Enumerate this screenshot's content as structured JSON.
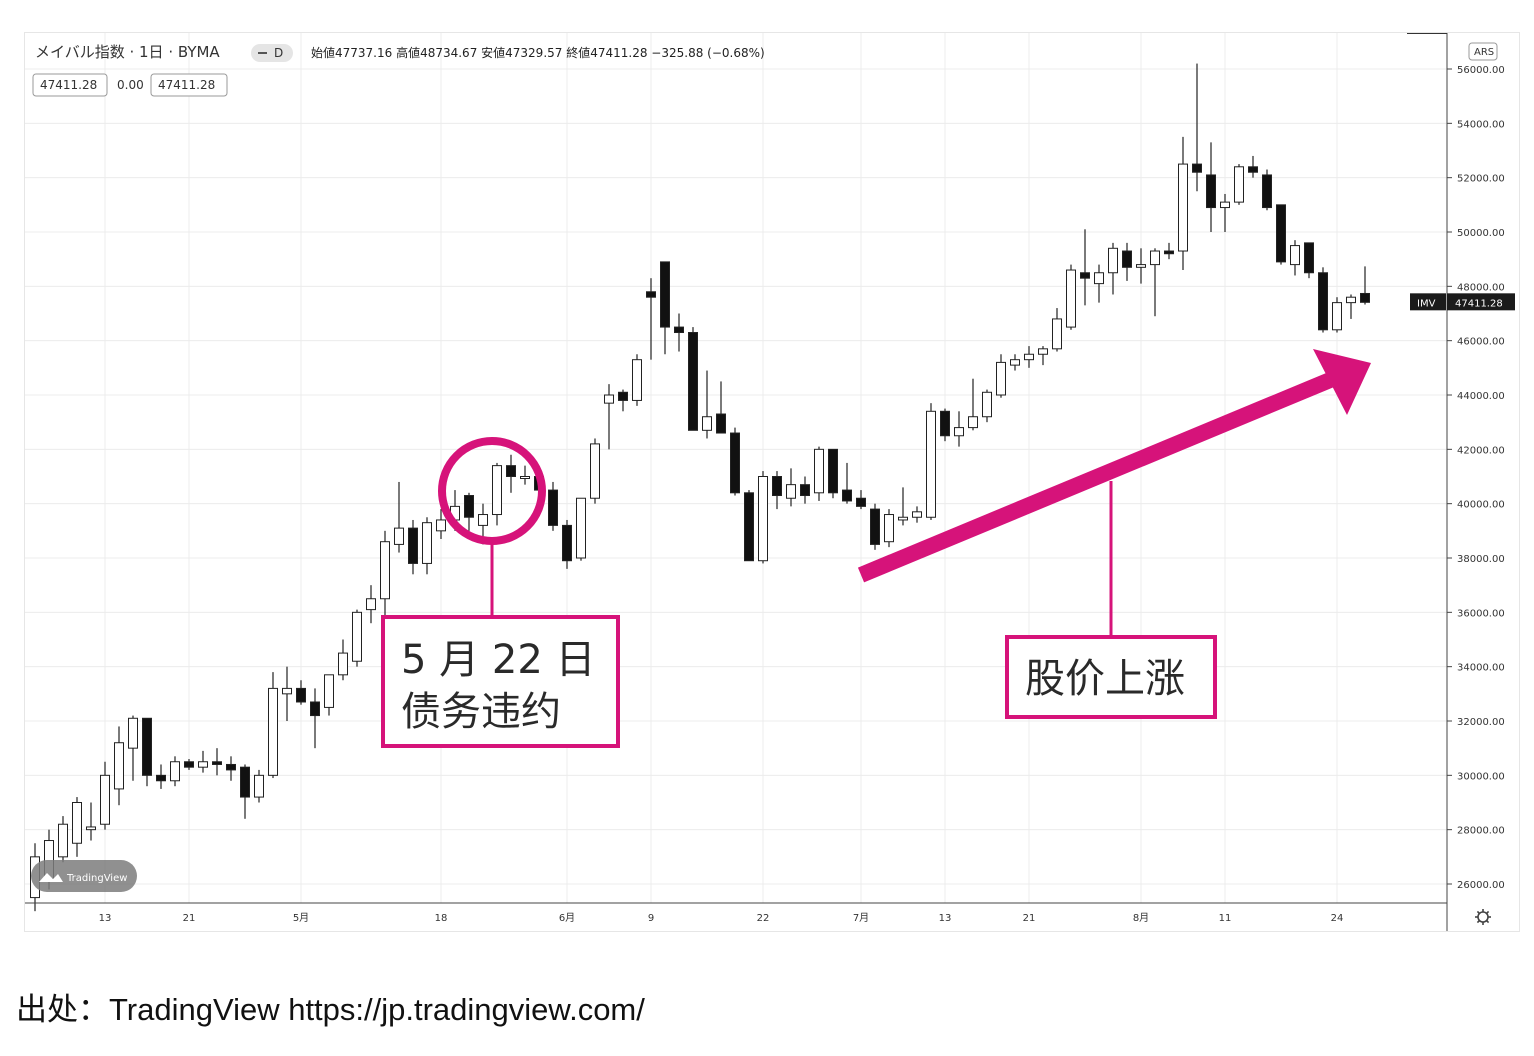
{
  "header": {
    "title": "メイバル指数 · 1日 · BYMA",
    "interval_badge": "D",
    "ohlc": "始値47737.16 高値48734.67 安値47329.57 終値47411.28 −325.88 (−0.68%)",
    "box_left": "47411.28",
    "box_mid": "0.00",
    "box_right": "47411.28"
  },
  "currency_badge": "ARS",
  "price_tag": {
    "symbol": "IMV",
    "value": "47411.28"
  },
  "watermark": "TradingView",
  "annotations": {
    "default_label_line1": "5 月 22 日",
    "default_label_line2": "债务违约",
    "rise_label": "股价上涨"
  },
  "caption": "出处：TradingView https://jp.tradingview.com/",
  "colors": {
    "accent": "#d6137a",
    "up_candle": "#ffffff",
    "down_candle": "#111111",
    "grid": "#ececec"
  },
  "chart_data": {
    "type": "candlestick",
    "ylim": [
      25000,
      57000
    ],
    "y_ticks": [
      "56000.00",
      "54000.00",
      "52000.00",
      "50000.00",
      "48000.00",
      "46000.00",
      "44000.00",
      "42000.00",
      "40000.00",
      "38000.00",
      "36000.00",
      "34000.00",
      "32000.00",
      "30000.00",
      "28000.00",
      "26000.00"
    ],
    "x_ticks": [
      "13",
      "21",
      "5月",
      "18",
      "6月",
      "9",
      "22",
      "7月",
      "13",
      "21",
      "8月",
      "11",
      "24"
    ],
    "x_tick_index": [
      5,
      11,
      19,
      29,
      38,
      44,
      52,
      59,
      65,
      71,
      79,
      85,
      93
    ],
    "last_price": 47411.28,
    "candles": [
      {
        "i": 0,
        "o": 25500,
        "h": 27500,
        "l": 25000,
        "c": 27000
      },
      {
        "i": 1,
        "o": 26200,
        "h": 28000,
        "l": 25800,
        "c": 27600
      },
      {
        "i": 2,
        "o": 27000,
        "h": 28500,
        "l": 26800,
        "c": 28200
      },
      {
        "i": 3,
        "o": 27500,
        "h": 29200,
        "l": 27000,
        "c": 29000
      },
      {
        "i": 4,
        "o": 28000,
        "h": 29000,
        "l": 27600,
        "c": 28100
      },
      {
        "i": 5,
        "o": 28200,
        "h": 30500,
        "l": 28000,
        "c": 30000
      },
      {
        "i": 6,
        "o": 29500,
        "h": 31800,
        "l": 28900,
        "c": 31200
      },
      {
        "i": 7,
        "o": 31000,
        "h": 32200,
        "l": 29800,
        "c": 32100
      },
      {
        "i": 8,
        "o": 32100,
        "h": 32100,
        "l": 29600,
        "c": 30000
      },
      {
        "i": 9,
        "o": 30000,
        "h": 30400,
        "l": 29500,
        "c": 29800
      },
      {
        "i": 10,
        "o": 29800,
        "h": 30700,
        "l": 29600,
        "c": 30500
      },
      {
        "i": 11,
        "o": 30500,
        "h": 30600,
        "l": 30200,
        "c": 30300
      },
      {
        "i": 12,
        "o": 30300,
        "h": 30900,
        "l": 30100,
        "c": 30500
      },
      {
        "i": 13,
        "o": 30500,
        "h": 31000,
        "l": 30000,
        "c": 30400
      },
      {
        "i": 14,
        "o": 30400,
        "h": 30700,
        "l": 29800,
        "c": 30200
      },
      {
        "i": 15,
        "o": 30300,
        "h": 30400,
        "l": 28400,
        "c": 29200
      },
      {
        "i": 16,
        "o": 29200,
        "h": 30200,
        "l": 29000,
        "c": 30000
      },
      {
        "i": 17,
        "o": 30000,
        "h": 33800,
        "l": 29900,
        "c": 33200
      },
      {
        "i": 18,
        "o": 33000,
        "h": 34000,
        "l": 32000,
        "c": 33200
      },
      {
        "i": 19,
        "o": 33200,
        "h": 33500,
        "l": 32600,
        "c": 32700
      },
      {
        "i": 20,
        "o": 32700,
        "h": 33200,
        "l": 31000,
        "c": 32200
      },
      {
        "i": 21,
        "o": 32500,
        "h": 33700,
        "l": 32200,
        "c": 33700
      },
      {
        "i": 22,
        "o": 33700,
        "h": 35000,
        "l": 33500,
        "c": 34500
      },
      {
        "i": 23,
        "o": 34200,
        "h": 36100,
        "l": 34000,
        "c": 36000
      },
      {
        "i": 24,
        "o": 36100,
        "h": 37000,
        "l": 35600,
        "c": 36500
      },
      {
        "i": 25,
        "o": 36500,
        "h": 39000,
        "l": 35900,
        "c": 38600
      },
      {
        "i": 26,
        "o": 38500,
        "h": 40800,
        "l": 38200,
        "c": 39100
      },
      {
        "i": 27,
        "o": 39100,
        "h": 39400,
        "l": 37400,
        "c": 37800
      },
      {
        "i": 28,
        "o": 37800,
        "h": 39500,
        "l": 37400,
        "c": 39300
      },
      {
        "i": 29,
        "o": 39000,
        "h": 39800,
        "l": 38700,
        "c": 39400
      },
      {
        "i": 30,
        "o": 39400,
        "h": 40500,
        "l": 39000,
        "c": 39900
      },
      {
        "i": 31,
        "o": 40300,
        "h": 40400,
        "l": 39000,
        "c": 39500
      },
      {
        "i": 32,
        "o": 39200,
        "h": 40000,
        "l": 38500,
        "c": 39600
      },
      {
        "i": 33,
        "o": 39600,
        "h": 41500,
        "l": 39200,
        "c": 41400
      },
      {
        "i": 34,
        "o": 41400,
        "h": 41800,
        "l": 40400,
        "c": 41000
      },
      {
        "i": 35,
        "o": 41000,
        "h": 41400,
        "l": 40700,
        "c": 41000
      },
      {
        "i": 36,
        "o": 41000,
        "h": 41300,
        "l": 39600,
        "c": 40500
      },
      {
        "i": 37,
        "o": 40500,
        "h": 40800,
        "l": 39000,
        "c": 39200
      },
      {
        "i": 38,
        "o": 39200,
        "h": 39400,
        "l": 37600,
        "c": 37900
      },
      {
        "i": 39,
        "o": 38000,
        "h": 40200,
        "l": 37900,
        "c": 40200
      },
      {
        "i": 40,
        "o": 40200,
        "h": 42400,
        "l": 40000,
        "c": 42200
      },
      {
        "i": 41,
        "o": 43700,
        "h": 44400,
        "l": 42000,
        "c": 44000
      },
      {
        "i": 42,
        "o": 44100,
        "h": 44200,
        "l": 43400,
        "c": 43800
      },
      {
        "i": 43,
        "o": 43800,
        "h": 45500,
        "l": 43600,
        "c": 45300
      },
      {
        "i": 44,
        "o": 47800,
        "h": 48300,
        "l": 45300,
        "c": 47600
      },
      {
        "i": 45,
        "o": 48900,
        "h": 48900,
        "l": 45500,
        "c": 46500
      },
      {
        "i": 46,
        "o": 46500,
        "h": 47000,
        "l": 45600,
        "c": 46300
      },
      {
        "i": 47,
        "o": 46300,
        "h": 46500,
        "l": 42800,
        "c": 42700
      },
      {
        "i": 48,
        "o": 42700,
        "h": 44900,
        "l": 42400,
        "c": 43200
      },
      {
        "i": 49,
        "o": 43300,
        "h": 44500,
        "l": 42600,
        "c": 42600
      },
      {
        "i": 50,
        "o": 42600,
        "h": 42800,
        "l": 40300,
        "c": 40400
      },
      {
        "i": 51,
        "o": 40400,
        "h": 40500,
        "l": 37900,
        "c": 37900
      },
      {
        "i": 52,
        "o": 37900,
        "h": 41200,
        "l": 37800,
        "c": 41000
      },
      {
        "i": 53,
        "o": 41000,
        "h": 41200,
        "l": 39800,
        "c": 40300
      },
      {
        "i": 54,
        "o": 40200,
        "h": 41300,
        "l": 39900,
        "c": 40700
      },
      {
        "i": 55,
        "o": 40700,
        "h": 41000,
        "l": 40000,
        "c": 40300
      },
      {
        "i": 56,
        "o": 40400,
        "h": 42100,
        "l": 40100,
        "c": 42000
      },
      {
        "i": 57,
        "o": 42000,
        "h": 42000,
        "l": 40200,
        "c": 40400
      },
      {
        "i": 58,
        "o": 40500,
        "h": 41500,
        "l": 40000,
        "c": 40100
      },
      {
        "i": 59,
        "o": 40200,
        "h": 40500,
        "l": 39800,
        "c": 39900
      },
      {
        "i": 60,
        "o": 39800,
        "h": 40000,
        "l": 38300,
        "c": 38500
      },
      {
        "i": 61,
        "o": 38600,
        "h": 39800,
        "l": 38400,
        "c": 39600
      },
      {
        "i": 62,
        "o": 39400,
        "h": 40600,
        "l": 39200,
        "c": 39500
      },
      {
        "i": 63,
        "o": 39500,
        "h": 39900,
        "l": 39300,
        "c": 39700
      },
      {
        "i": 64,
        "o": 39500,
        "h": 43700,
        "l": 39400,
        "c": 43400
      },
      {
        "i": 65,
        "o": 43400,
        "h": 43500,
        "l": 42300,
        "c": 42500
      },
      {
        "i": 66,
        "o": 42500,
        "h": 43400,
        "l": 42100,
        "c": 42800
      },
      {
        "i": 67,
        "o": 42800,
        "h": 44600,
        "l": 42700,
        "c": 43200
      },
      {
        "i": 68,
        "o": 43200,
        "h": 44200,
        "l": 43000,
        "c": 44100
      },
      {
        "i": 69,
        "o": 44000,
        "h": 45500,
        "l": 43900,
        "c": 45200
      },
      {
        "i": 70,
        "o": 45100,
        "h": 45500,
        "l": 44900,
        "c": 45300
      },
      {
        "i": 71,
        "o": 45300,
        "h": 45800,
        "l": 45000,
        "c": 45500
      },
      {
        "i": 72,
        "o": 45500,
        "h": 45800,
        "l": 45100,
        "c": 45700
      },
      {
        "i": 73,
        "o": 45700,
        "h": 47200,
        "l": 45600,
        "c": 46800
      },
      {
        "i": 74,
        "o": 46500,
        "h": 48800,
        "l": 46400,
        "c": 48600
      },
      {
        "i": 75,
        "o": 48500,
        "h": 50100,
        "l": 47300,
        "c": 48300
      },
      {
        "i": 76,
        "o": 48100,
        "h": 48800,
        "l": 47400,
        "c": 48500
      },
      {
        "i": 77,
        "o": 48500,
        "h": 49600,
        "l": 47700,
        "c": 49400
      },
      {
        "i": 78,
        "o": 49300,
        "h": 49600,
        "l": 48200,
        "c": 48700
      },
      {
        "i": 79,
        "o": 48700,
        "h": 49400,
        "l": 48100,
        "c": 48800
      },
      {
        "i": 80,
        "o": 48800,
        "h": 49400,
        "l": 46900,
        "c": 49300
      },
      {
        "i": 81,
        "o": 49300,
        "h": 49600,
        "l": 49000,
        "c": 49200
      },
      {
        "i": 82,
        "o": 49300,
        "h": 53500,
        "l": 48600,
        "c": 52500
      },
      {
        "i": 83,
        "o": 52500,
        "h": 56200,
        "l": 51500,
        "c": 52200
      },
      {
        "i": 84,
        "o": 52100,
        "h": 53300,
        "l": 50000,
        "c": 50900
      },
      {
        "i": 85,
        "o": 50900,
        "h": 51400,
        "l": 50000,
        "c": 51100
      },
      {
        "i": 86,
        "o": 51100,
        "h": 52500,
        "l": 51000,
        "c": 52400
      },
      {
        "i": 87,
        "o": 52400,
        "h": 52800,
        "l": 52000,
        "c": 52200
      },
      {
        "i": 88,
        "o": 52100,
        "h": 52300,
        "l": 50800,
        "c": 50900
      },
      {
        "i": 89,
        "o": 51000,
        "h": 51000,
        "l": 48800,
        "c": 48900
      },
      {
        "i": 90,
        "o": 48800,
        "h": 49700,
        "l": 48400,
        "c": 49500
      },
      {
        "i": 91,
        "o": 49600,
        "h": 49600,
        "l": 48300,
        "c": 48500
      },
      {
        "i": 92,
        "o": 48500,
        "h": 48700,
        "l": 46300,
        "c": 46400
      },
      {
        "i": 93,
        "o": 46400,
        "h": 47600,
        "l": 46300,
        "c": 47400
      },
      {
        "i": 94,
        "o": 47400,
        "h": 47700,
        "l": 46800,
        "c": 47600
      },
      {
        "i": 95,
        "o": 47737.16,
        "h": 48734.67,
        "l": 47329.57,
        "c": 47411.28
      }
    ]
  }
}
